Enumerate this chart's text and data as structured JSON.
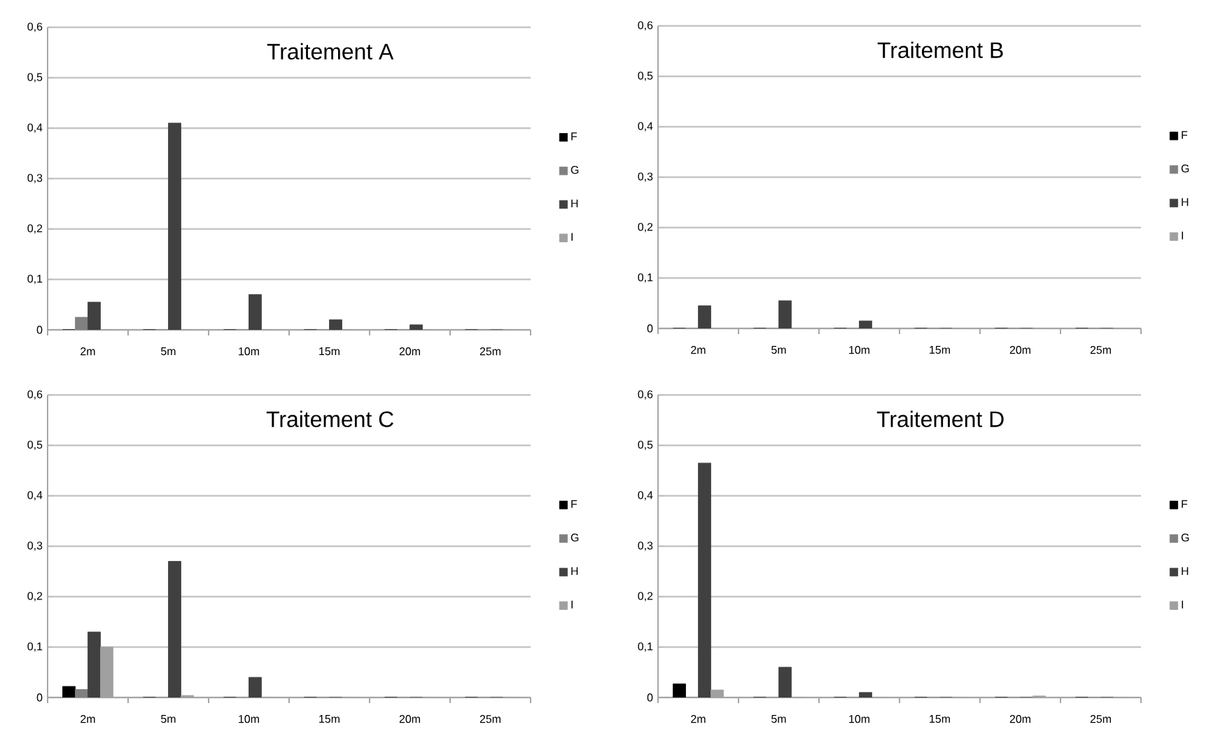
{
  "chart_data": [
    {
      "type": "bar",
      "title": "Traitement A",
      "categories": [
        "2m",
        "5m",
        "10m",
        "15m",
        "20m",
        "25m"
      ],
      "series": [
        {
          "name": "F",
          "color": "#000000",
          "values": [
            0,
            0,
            0,
            0,
            0,
            0
          ]
        },
        {
          "name": "G",
          "color": "#808080",
          "values": [
            0.025,
            0,
            0,
            0,
            0,
            0
          ]
        },
        {
          "name": "H",
          "color": "#404040",
          "values": [
            0.055,
            0.41,
            0.07,
            0.02,
            0.01,
            0
          ]
        },
        {
          "name": "I",
          "color": "#a0a0a0",
          "values": [
            0,
            0,
            0,
            0,
            0,
            0
          ]
        }
      ],
      "ylim": [
        0,
        0.6
      ],
      "yticks": [
        {
          "value": 0,
          "label": "0"
        },
        {
          "value": 0.1,
          "label": "0,1"
        },
        {
          "value": 0.2,
          "label": "0,2"
        },
        {
          "value": 0.3,
          "label": "0,3"
        },
        {
          "value": 0.4,
          "label": "0,4"
        },
        {
          "value": 0.5,
          "label": "0,5"
        },
        {
          "value": 0.6,
          "label": "0,6"
        }
      ],
      "grid": "y",
      "legend": "right"
    },
    {
      "type": "bar",
      "title": "Traitement B",
      "categories": [
        "2m",
        "5m",
        "10m",
        "15m",
        "20m",
        "25m"
      ],
      "series": [
        {
          "name": "F",
          "color": "#000000",
          "values": [
            0,
            0,
            0,
            0,
            0,
            0
          ]
        },
        {
          "name": "G",
          "color": "#808080",
          "values": [
            0,
            0,
            0,
            0,
            0,
            0
          ]
        },
        {
          "name": "H",
          "color": "#404040",
          "values": [
            0.045,
            0.055,
            0.015,
            0,
            0,
            0
          ]
        },
        {
          "name": "I",
          "color": "#a0a0a0",
          "values": [
            0,
            0,
            0,
            0,
            0,
            0
          ]
        }
      ],
      "ylim": [
        0,
        0.6
      ],
      "yticks": [
        {
          "value": 0,
          "label": "0"
        },
        {
          "value": 0.1,
          "label": "0,1"
        },
        {
          "value": 0.2,
          "label": "0,2"
        },
        {
          "value": 0.3,
          "label": "0,3"
        },
        {
          "value": 0.4,
          "label": "0,4"
        },
        {
          "value": 0.5,
          "label": "0,5"
        },
        {
          "value": 0.6,
          "label": "0,6"
        }
      ],
      "grid": "y",
      "legend": "right"
    },
    {
      "type": "bar",
      "title": "Traitement C",
      "categories": [
        "2m",
        "5m",
        "10m",
        "15m",
        "20m",
        "25m"
      ],
      "series": [
        {
          "name": "F",
          "color": "#000000",
          "values": [
            0.022,
            0,
            0,
            0,
            0,
            0
          ]
        },
        {
          "name": "G",
          "color": "#808080",
          "values": [
            0.016,
            0,
            0,
            0,
            0,
            0
          ]
        },
        {
          "name": "H",
          "color": "#404040",
          "values": [
            0.13,
            0.27,
            0.04,
            0,
            0,
            0
          ]
        },
        {
          "name": "I",
          "color": "#a0a0a0",
          "values": [
            0.1,
            0.004,
            0,
            0,
            0,
            0
          ]
        }
      ],
      "ylim": [
        0,
        0.6
      ],
      "yticks": [
        {
          "value": 0,
          "label": "0"
        },
        {
          "value": 0.1,
          "label": "0,1"
        },
        {
          "value": 0.2,
          "label": "0,2"
        },
        {
          "value": 0.3,
          "label": "0,3"
        },
        {
          "value": 0.4,
          "label": "0,4"
        },
        {
          "value": 0.5,
          "label": "0,5"
        },
        {
          "value": 0.6,
          "label": "0,6"
        }
      ],
      "grid": "y",
      "legend": "right"
    },
    {
      "type": "bar",
      "title": "Traitement D",
      "categories": [
        "2m",
        "5m",
        "10m",
        "15m",
        "20m",
        "25m"
      ],
      "series": [
        {
          "name": "F",
          "color": "#000000",
          "values": [
            0.027,
            0,
            0,
            0,
            0,
            0
          ]
        },
        {
          "name": "G",
          "color": "#808080",
          "values": [
            0,
            0,
            0,
            0,
            0,
            0
          ]
        },
        {
          "name": "H",
          "color": "#404040",
          "values": [
            0.465,
            0.06,
            0.01,
            0,
            0,
            0
          ]
        },
        {
          "name": "I",
          "color": "#a0a0a0",
          "values": [
            0.015,
            0,
            0,
            0,
            0.003,
            0
          ]
        }
      ],
      "ylim": [
        0,
        0.6
      ],
      "yticks": [
        {
          "value": 0,
          "label": "0"
        },
        {
          "value": 0.1,
          "label": "0,1"
        },
        {
          "value": 0.2,
          "label": "0,2"
        },
        {
          "value": 0.3,
          "label": "0,3"
        },
        {
          "value": 0.4,
          "label": "0,4"
        },
        {
          "value": 0.5,
          "label": "0,5"
        },
        {
          "value": 0.6,
          "label": "0,6"
        }
      ],
      "grid": "y",
      "legend": "right"
    }
  ]
}
